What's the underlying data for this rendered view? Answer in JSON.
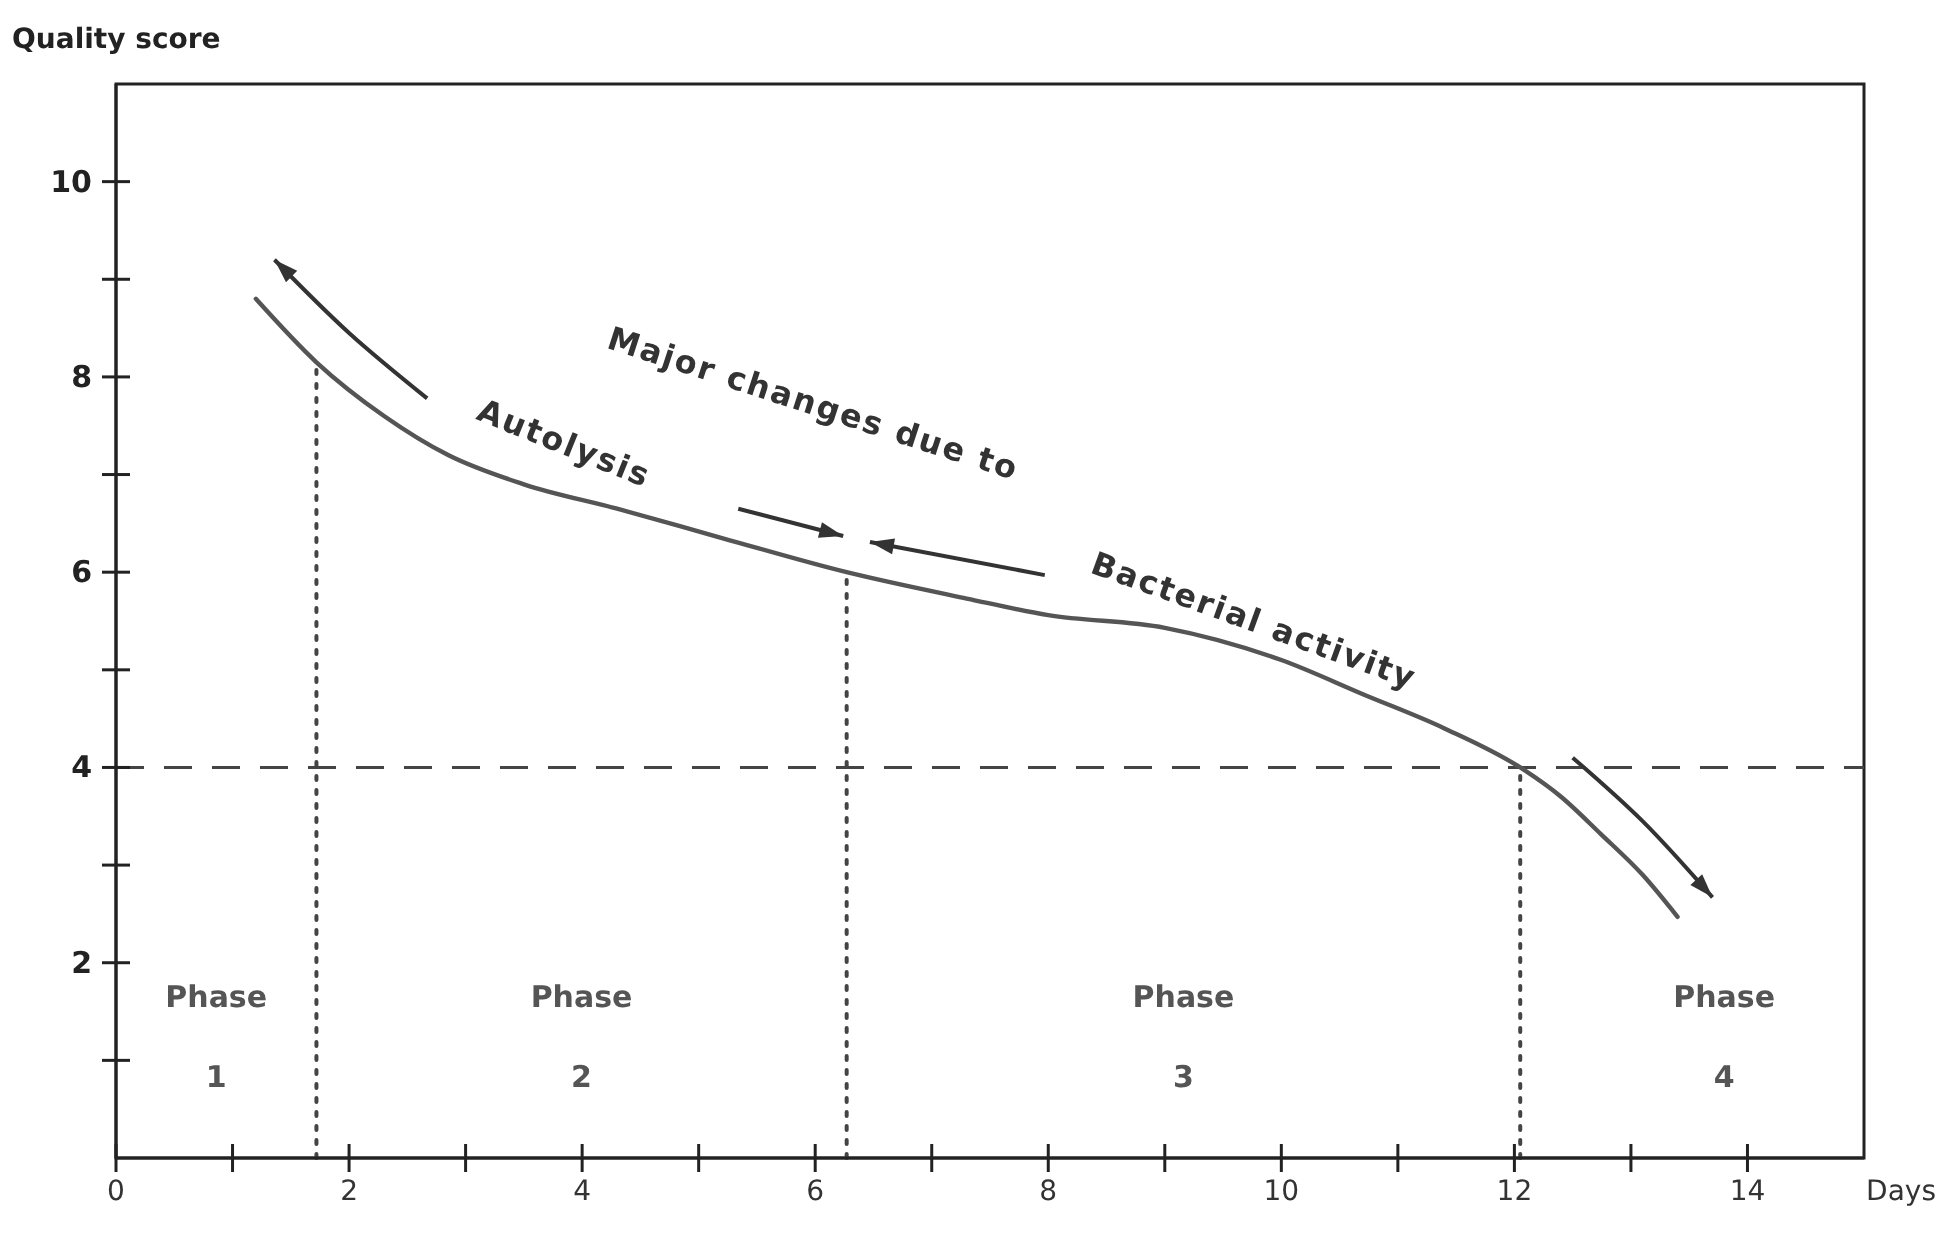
{
  "chart_data": {
    "type": "line",
    "xlabel": "Days",
    "ylabel": "Quality score",
    "xlim": [
      0,
      15
    ],
    "ylim": [
      0,
      11
    ],
    "xticks": [
      0,
      {
        "value": 1,
        "label": null
      },
      2,
      {
        "value": 3,
        "label": null
      },
      4,
      {
        "value": 5,
        "label": null
      },
      6,
      {
        "value": 7,
        "label": null
      },
      8,
      {
        "value": 9,
        "label": null
      },
      10,
      {
        "value": 11,
        "label": null
      },
      12,
      {
        "value": 13,
        "label": null
      },
      14
    ],
    "yticks": [
      {
        "value": 1,
        "label": null
      },
      2,
      {
        "value": 3,
        "label": null
      },
      4,
      {
        "value": 5,
        "label": null
      },
      6,
      {
        "value": 7,
        "label": null
      },
      8,
      {
        "value": 9,
        "label": null
      },
      10
    ],
    "series": [
      {
        "color": "#555555",
        "x": [
          1.2,
          1.72,
          2.3,
          2.85,
          3.5,
          4.3,
          5.2,
          6.27,
          7.3,
          8.0,
          9.0,
          10.0,
          10.7,
          11.4,
          12.05,
          12.4,
          12.74,
          13.1,
          13.4
        ],
        "values": [
          8.8,
          8.15,
          7.6,
          7.2,
          6.9,
          6.65,
          6.35,
          6.0,
          5.73,
          5.56,
          5.43,
          5.1,
          4.75,
          4.4,
          4.0,
          3.7,
          3.32,
          2.9,
          2.47
        ]
      }
    ],
    "ref_lines": [
      {
        "axis": "y",
        "value": 4,
        "line_style": "dashed",
        "color": "#444444"
      },
      {
        "axis": "x",
        "value": 1.72,
        "line_style": "dotted",
        "color": "#444444"
      },
      {
        "axis": "x",
        "value": 6.27,
        "line_style": "dotted",
        "color": "#444444"
      },
      {
        "axis": "x",
        "value": 12.05,
        "line_style": "dotted",
        "color": "#444444"
      }
    ],
    "annotations": [
      "Major changes due to",
      "Autolysis",
      "Bacterial activity",
      "Phase 1",
      "Phase 2",
      "Phase 3",
      "Phase 4"
    ],
    "grid": false,
    "marker": "none",
    "line_style": "solid"
  }
}
